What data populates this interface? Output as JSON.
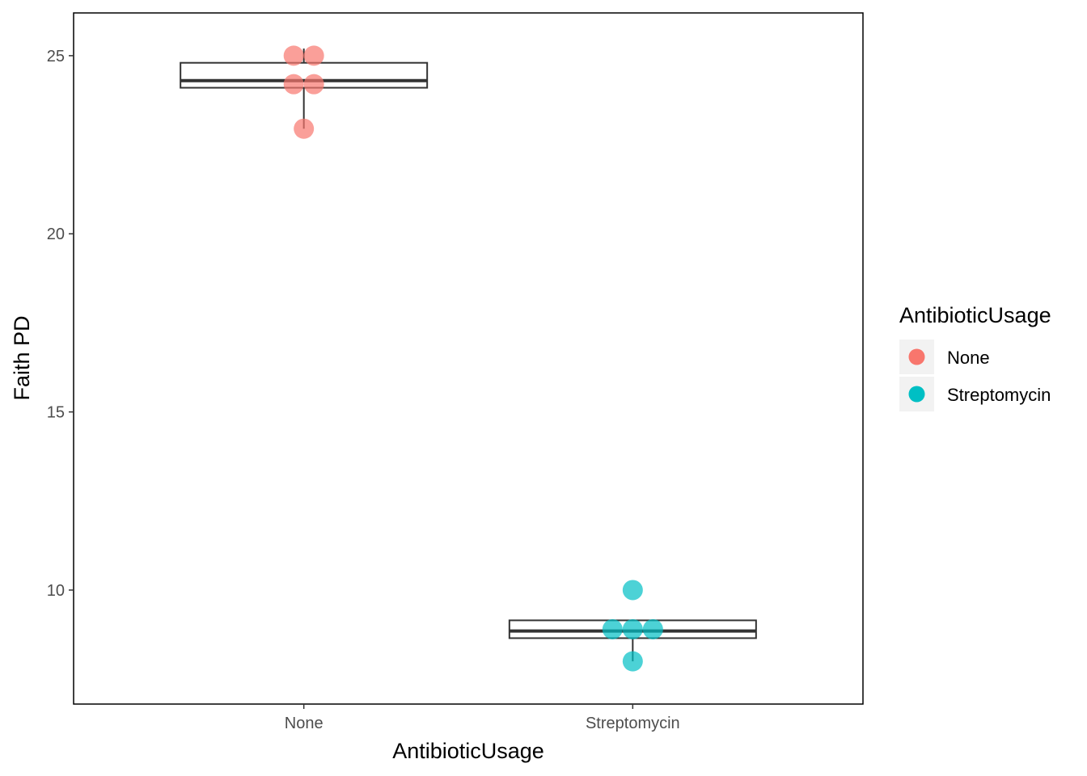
{
  "chart_data": {
    "type": "boxplot",
    "xlabel": "AntibioticUsage",
    "ylabel": "Faith PD",
    "ylim": [
      6.8,
      26.2
    ],
    "y_ticks": [
      10,
      15,
      20,
      25
    ],
    "grid": false,
    "legend_position": "right",
    "categories": [
      "None",
      "Streptomycin"
    ],
    "groups": [
      {
        "name": "None",
        "color": "#F8766D",
        "box": {
          "min": 22.95,
          "q1": 24.1,
          "median": 24.3,
          "q3": 24.8,
          "max": 25.2
        },
        "points": [
          25.0,
          25.0,
          24.2,
          24.2,
          22.95
        ]
      },
      {
        "name": "Streptomycin",
        "color": "#00BFC4",
        "box": {
          "min": 8.0,
          "q1": 8.65,
          "median": 8.85,
          "q3": 9.15,
          "max": 9.15
        },
        "points": [
          10.0,
          8.9,
          8.9,
          8.9,
          8.0
        ]
      }
    ],
    "legend": {
      "title": "AntibioticUsage",
      "entries": [
        {
          "label": "None",
          "color": "#F8766D"
        },
        {
          "label": "Streptomycin",
          "color": "#00BFC4"
        }
      ]
    }
  }
}
